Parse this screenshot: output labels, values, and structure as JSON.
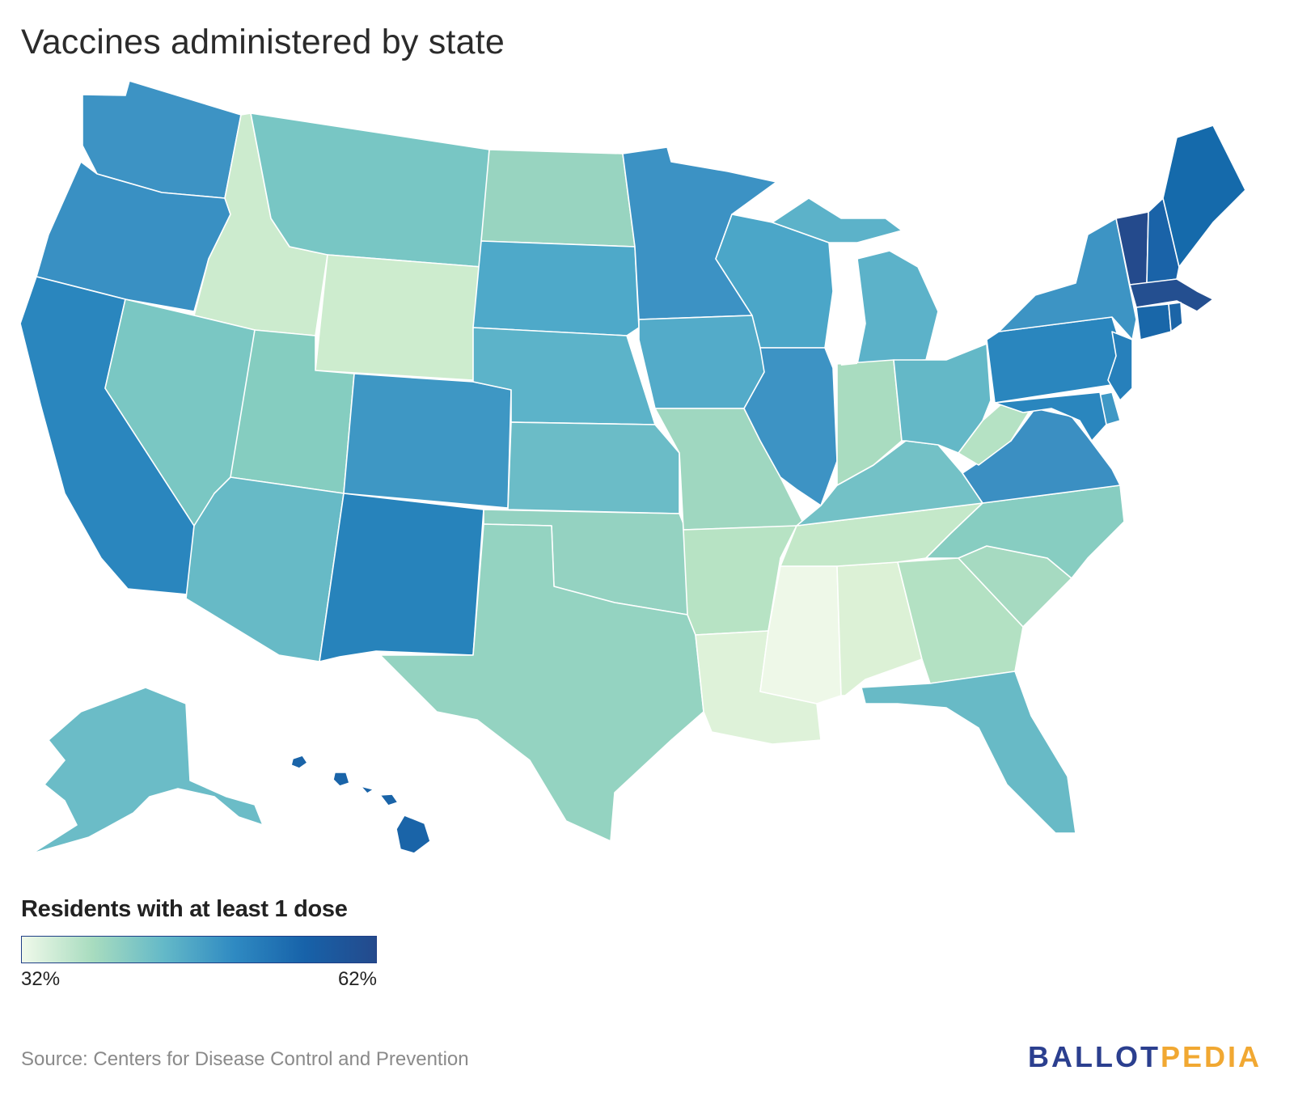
{
  "title": "Vaccines administered by state",
  "legend": {
    "title": "Residents with at least 1 dose",
    "min_label": "32%",
    "max_label": "62%",
    "color_min": "#f0f9ea",
    "color_max": "#244a8c",
    "gradient": [
      "#f0f9ea",
      "#a8dcbf",
      "#64b9c8",
      "#2f8ac2",
      "#1762a9",
      "#244a8c"
    ]
  },
  "source": "Source: Centers for Disease Control and Prevention",
  "brand": {
    "part1": "BALLOT",
    "part2": "PEDIA"
  },
  "states": {
    "WA": "#3d93c4",
    "OR": "#3990c3",
    "CA": "#2a86be",
    "ID": "#ccebce",
    "NV": "#7ac7c3",
    "MT": "#78c6c4",
    "WY": "#cdecce",
    "UT": "#85cdc0",
    "AZ": "#67bac6",
    "CO": "#3e97c4",
    "NM": "#2783bb",
    "ND": "#98d4c0",
    "SD": "#4ea9c9",
    "NE": "#5cb3c9",
    "KS": "#6bbcc7",
    "OK": "#94d2c1",
    "TX": "#94d3c1",
    "MN": "#3c92c4",
    "IA": "#53abc9",
    "MO": "#9fd7c0",
    "AR": "#b7e3c4",
    "LA": "#def2d9",
    "WI": "#4ba6c8",
    "IL": "#3d93c4",
    "MS": "#eef8e8",
    "MI": "#5cb2c9",
    "IN": "#a9dcc0",
    "OH": "#64b8c7",
    "KY": "#73c1c6",
    "TN": "#c4e8c9",
    "AL": "#dcf1d6",
    "GA": "#b3e1c3",
    "FL": "#68bac6",
    "SC": "#a6dac1",
    "NC": "#87cdc1",
    "VA": "#3b8fc2",
    "WV": "#b5e2c4",
    "PA": "#2a86be",
    "NY": "#3d94c4",
    "ME": "#156aab",
    "VT": "#244a8c",
    "NH": "#1a63a8",
    "MA": "#244f90",
    "CT": "#1967a9",
    "RI": "#1c65a7",
    "NJ": "#2780bb",
    "DE": "#3f98c5",
    "MD": "#2a86be",
    "AK": "#6bbcc7",
    "HI": "#1a64a8"
  }
}
